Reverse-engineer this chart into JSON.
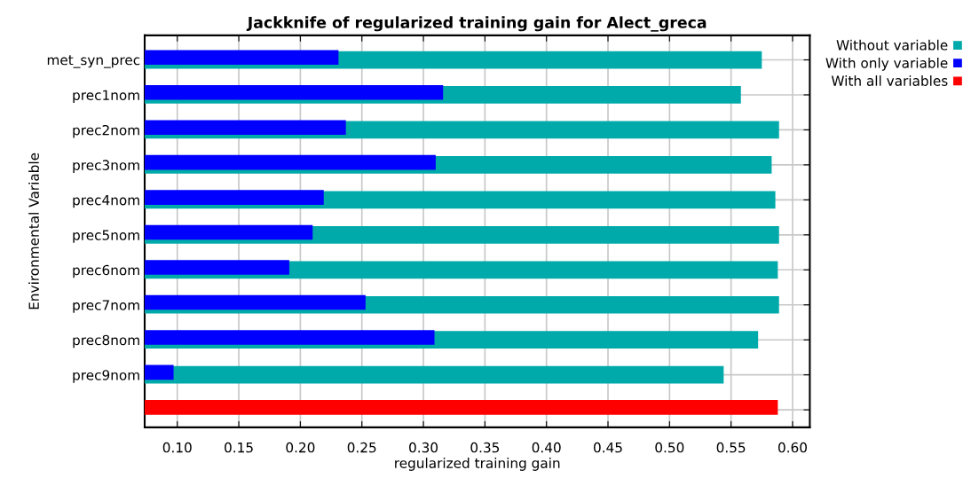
{
  "chart_data": {
    "type": "bar",
    "orientation": "horizontal",
    "title": "Jackknife of regularized training gain for Alect_greca",
    "xlabel": "regularized training gain",
    "ylabel": "Environmental Variable",
    "categories": [
      "met_syn_prec",
      "prec1nom",
      "prec2nom",
      "prec3nom",
      "prec4nom",
      "prec5nom",
      "prec6nom",
      "prec7nom",
      "prec8nom",
      "prec9nom",
      null
    ],
    "series": [
      {
        "name": "Without variable",
        "color": "#00aaaa",
        "values": [
          0.575,
          0.558,
          0.589,
          0.583,
          0.586,
          0.589,
          0.588,
          0.589,
          0.572,
          0.544,
          null
        ]
      },
      {
        "name": "With only variable",
        "color": "#0000ff",
        "values": [
          0.231,
          0.316,
          0.237,
          0.31,
          0.219,
          0.21,
          0.191,
          0.253,
          0.309,
          0.097,
          null
        ]
      },
      {
        "name": "With all variables",
        "color": "#ff0000",
        "values": [
          null,
          null,
          null,
          null,
          null,
          null,
          null,
          null,
          null,
          null,
          0.588
        ]
      }
    ],
    "xlim": [
      0.0735,
      0.614
    ],
    "xticks": [
      {
        "value": 0.1,
        "label": "0.10"
      },
      {
        "value": 0.15,
        "label": "0.15"
      },
      {
        "value": 0.2,
        "label": "0.20"
      },
      {
        "value": 0.25,
        "label": "0.25"
      },
      {
        "value": 0.3,
        "label": "0.30"
      },
      {
        "value": 0.35,
        "label": "0.35"
      },
      {
        "value": 0.4,
        "label": "0.40"
      },
      {
        "value": 0.45,
        "label": "0.45"
      },
      {
        "value": 0.5,
        "label": "0.50"
      },
      {
        "value": 0.55,
        "label": "0.55"
      },
      {
        "value": 0.6,
        "label": "0.60"
      }
    ],
    "grid": true,
    "legend": "top right"
  }
}
